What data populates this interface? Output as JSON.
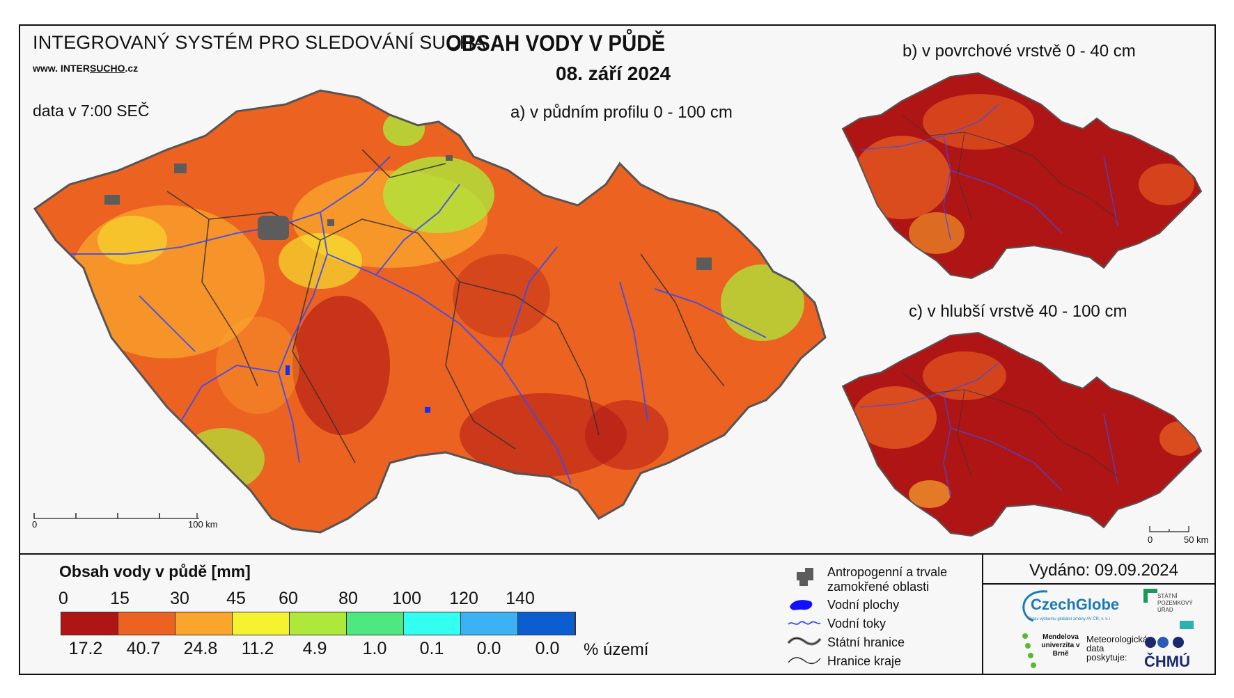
{
  "header": {
    "system_title": "INTEGROVANÝ SYSTÉM PRO SLEDOVÁNÍ SUCHA",
    "website_prefix": "www. INTER",
    "website_brand": "SUCHO",
    "website_suffix": ".cz",
    "data_time": "data v 7:00 SEČ",
    "main_title": "OBSAH VODY V PŮDĚ",
    "date": "08. září 2024"
  },
  "maps": {
    "a_label": "a) v půdním profilu 0 - 100 cm",
    "b_label": "b) v povrchové vrstvě 0 - 40 cm",
    "c_label": "c) v hlubší vrstvě 40 - 100 cm",
    "scale_main": {
      "start": "0",
      "end": "100 km"
    },
    "scale_small": {
      "start": "0",
      "end": "50 km"
    }
  },
  "legend": {
    "title": "Obsah vody v půdě  [mm]",
    "limits": [
      "0",
      "15",
      "30",
      "45",
      "60",
      "80",
      "100",
      "120",
      "140"
    ],
    "colors": [
      "#b01515",
      "#ec6221",
      "#fba52c",
      "#f7f230",
      "#aee83a",
      "#4fe880",
      "#33fff0",
      "#3ab2f5",
      "#0a5ecf"
    ],
    "percentages": [
      "17.2",
      "40.7",
      "24.8",
      "11.2",
      "4.9",
      "1.0",
      "0.1",
      "0.0",
      "0.0"
    ],
    "percent_unit": "% území"
  },
  "symbols": {
    "anthropogenic": "Antropogenní a trvale zamokřené oblasti",
    "water_bodies": "Vodní plochy",
    "water_streams": "Vodní toky",
    "state_border": "Státní hranice",
    "region_border": "Hranice kraje"
  },
  "issued": "Vydáno: 09.09.2024",
  "logos": {
    "czechglobe": "CzechGlobe",
    "czechglobe_sub": "Ústav výzkumu globální změny AV ČR, v. v. i.",
    "spu": "STÁTNÍ POZEMKOVÝ ÚŘAD",
    "mendel": "Mendelova univerzita v Brně",
    "met_data": "Meteorologická data poskytuje:",
    "chmu": "ČHMÚ"
  }
}
